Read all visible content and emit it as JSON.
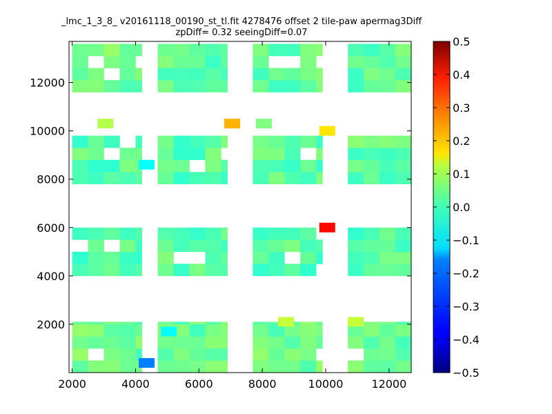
{
  "chart_data": {
    "type": "heatmap",
    "title": "_lmc_1_3_8_ v20161118_00190_st_tl.fit 4278476 offset 2 tile-paw apermag3Diff",
    "subtitle": "zpDiff= 0.32 seeingDiff=0.07",
    "xlabel": "",
    "ylabel": "",
    "xlim": [
      1900,
      12700
    ],
    "ylim": [
      0,
      13700
    ],
    "x_ticks": [
      2000,
      4000,
      6000,
      8000,
      10000,
      12000
    ],
    "y_ticks": [
      2000,
      4000,
      6000,
      8000,
      10000,
      12000
    ],
    "cell_size": [
      500,
      500
    ],
    "colorbar": {
      "colormap": "jet",
      "range": [
        -0.5,
        0.5
      ],
      "ticks": [
        0.5,
        0.4,
        0.3,
        0.2,
        0.1,
        0.0,
        -0.1,
        -0.2,
        -0.3,
        -0.4,
        -0.5
      ],
      "tick_labels": [
        "0.5",
        "0.4",
        "0.3",
        "0.2",
        "0.1",
        "0.0",
        "−0.1",
        "−0.2",
        "−0.3",
        "−0.4",
        "−0.5"
      ]
    },
    "notable_cells": [
      {
        "x": 4100,
        "y": 200,
        "value": -0.25
      },
      {
        "x": 4100,
        "y": 8400,
        "value": -0.12
      },
      {
        "x": 4800,
        "y": 1500,
        "value": -0.12
      },
      {
        "x": 6800,
        "y": 10100,
        "value": 0.2
      },
      {
        "x": 9800,
        "y": 9800,
        "value": 0.15
      },
      {
        "x": 9800,
        "y": 5800,
        "value": 0.37
      },
      {
        "x": 8500,
        "y": 1900,
        "value": 0.07
      },
      {
        "x": 10700,
        "y": 1900,
        "value": 0.07
      },
      {
        "x": 2800,
        "y": 10100,
        "value": 0.05
      },
      {
        "x": 7800,
        "y": 10100,
        "value": 0.0
      }
    ],
    "blocks": [
      {
        "x0": 2000,
        "x1": 4200,
        "y0": 11600,
        "y1": 13600,
        "base": -0.02
      },
      {
        "x0": 4700,
        "x1": 6900,
        "y0": 11600,
        "y1": 13600,
        "base": -0.03
      },
      {
        "x0": 7700,
        "x1": 9900,
        "y0": 11600,
        "y1": 13600,
        "base": -0.03
      },
      {
        "x0": 10700,
        "x1": 12700,
        "y0": 11600,
        "y1": 13600,
        "base": -0.03
      },
      {
        "x0": 2000,
        "x1": 4200,
        "y0": 7800,
        "y1": 9800,
        "base": -0.04
      },
      {
        "x0": 4700,
        "x1": 6900,
        "y0": 7800,
        "y1": 9800,
        "base": -0.04
      },
      {
        "x0": 7700,
        "x1": 9900,
        "y0": 7800,
        "y1": 9800,
        "base": -0.04
      },
      {
        "x0": 10700,
        "x1": 12700,
        "y0": 7800,
        "y1": 9800,
        "base": -0.03
      },
      {
        "x0": 2000,
        "x1": 4200,
        "y0": 4000,
        "y1": 6000,
        "base": -0.05
      },
      {
        "x0": 4700,
        "x1": 6900,
        "y0": 4000,
        "y1": 6000,
        "base": -0.04
      },
      {
        "x0": 7700,
        "x1": 9900,
        "y0": 4000,
        "y1": 6000,
        "base": -0.04
      },
      {
        "x0": 10700,
        "x1": 12700,
        "y0": 4000,
        "y1": 6000,
        "base": -0.04
      },
      {
        "x0": 2000,
        "x1": 4200,
        "y0": 0,
        "y1": 2100,
        "base": -0.02
      },
      {
        "x0": 4700,
        "x1": 6900,
        "y0": 0,
        "y1": 2100,
        "base": -0.03
      },
      {
        "x0": 7700,
        "x1": 9900,
        "y0": 0,
        "y1": 2100,
        "base": -0.02
      },
      {
        "x0": 10700,
        "x1": 12700,
        "y0": 0,
        "y1": 2100,
        "base": -0.02
      }
    ]
  }
}
